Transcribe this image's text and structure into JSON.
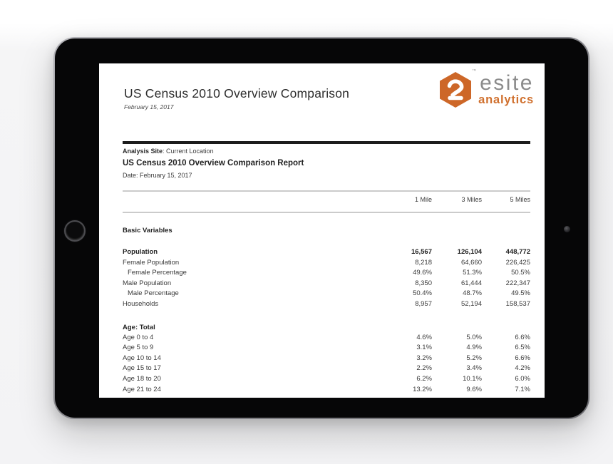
{
  "header": {
    "title": "US Census 2010 Overview Comparison",
    "date": "February 15, 2017"
  },
  "logo": {
    "tm": "™",
    "brand_top": "esite",
    "brand_bottom": "analytics",
    "orange": "#cd6728",
    "gray": "#8b8b8b"
  },
  "meta": {
    "analysis_site_label": "Analysis Site",
    "analysis_site_value": ": Current Location",
    "report_title": "US Census 2010 Overview Comparison Report",
    "date_line": "Date: February 15, 2017"
  },
  "table": {
    "column_headers": [
      "1 Mile",
      "3 Miles",
      "5 Miles"
    ],
    "sections": [
      {
        "heading": "Basic Variables",
        "rows": [
          {
            "label": "Population",
            "bold": true,
            "values": [
              "16,567",
              "126,104",
              "448,772"
            ]
          },
          {
            "label": "Female Population",
            "values": [
              "8,218",
              "64,660",
              "226,425"
            ]
          },
          {
            "label": "Female Percentage",
            "indent": true,
            "values": [
              "49.6%",
              "51.3%",
              "50.5%"
            ]
          },
          {
            "label": "Male Population",
            "values": [
              "8,350",
              "61,444",
              "222,347"
            ]
          },
          {
            "label": "Male Percentage",
            "indent": true,
            "values": [
              "50.4%",
              "48.7%",
              "49.5%"
            ]
          },
          {
            "label": "Households",
            "values": [
              "8,957",
              "52,194",
              "158,537"
            ]
          }
        ]
      },
      {
        "heading": "Age: Total",
        "rows": [
          {
            "label": "Age 0 to 4",
            "values": [
              "4.6%",
              "5.0%",
              "6.6%"
            ]
          },
          {
            "label": "Age 5 to 9",
            "values": [
              "3.1%",
              "4.9%",
              "6.5%"
            ]
          },
          {
            "label": "Age 10 to 14",
            "values": [
              "3.2%",
              "5.2%",
              "6.6%"
            ]
          },
          {
            "label": "Age 15 to 17",
            "values": [
              "2.2%",
              "3.4%",
              "4.2%"
            ]
          },
          {
            "label": "Age 18 to 20",
            "values": [
              "6.2%",
              "10.1%",
              "6.0%"
            ]
          },
          {
            "label": "Age 21 to 24",
            "values": [
              "13.2%",
              "9.6%",
              "7.1%"
            ]
          }
        ]
      }
    ]
  }
}
